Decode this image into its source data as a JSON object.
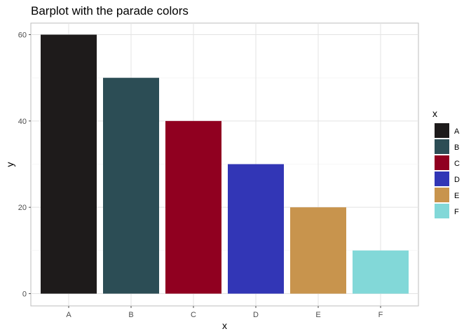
{
  "chart_data": {
    "type": "bar",
    "title": "Barplot with the parade colors",
    "xlabel": "x",
    "ylabel": "y",
    "categories": [
      "A",
      "B",
      "C",
      "D",
      "E",
      "F"
    ],
    "values": [
      60,
      50,
      40,
      30,
      20,
      10
    ],
    "colors": [
      "#1e1b1b",
      "#2c4d55",
      "#900020",
      "#3236b6",
      "#c8944d",
      "#82d8d8"
    ],
    "ylim": [
      0,
      60
    ],
    "yticks": [
      0,
      20,
      40,
      60
    ],
    "grid": true,
    "legend": {
      "title": "x",
      "position": "right",
      "entries": [
        "A",
        "B",
        "C",
        "D",
        "E",
        "F"
      ]
    }
  }
}
